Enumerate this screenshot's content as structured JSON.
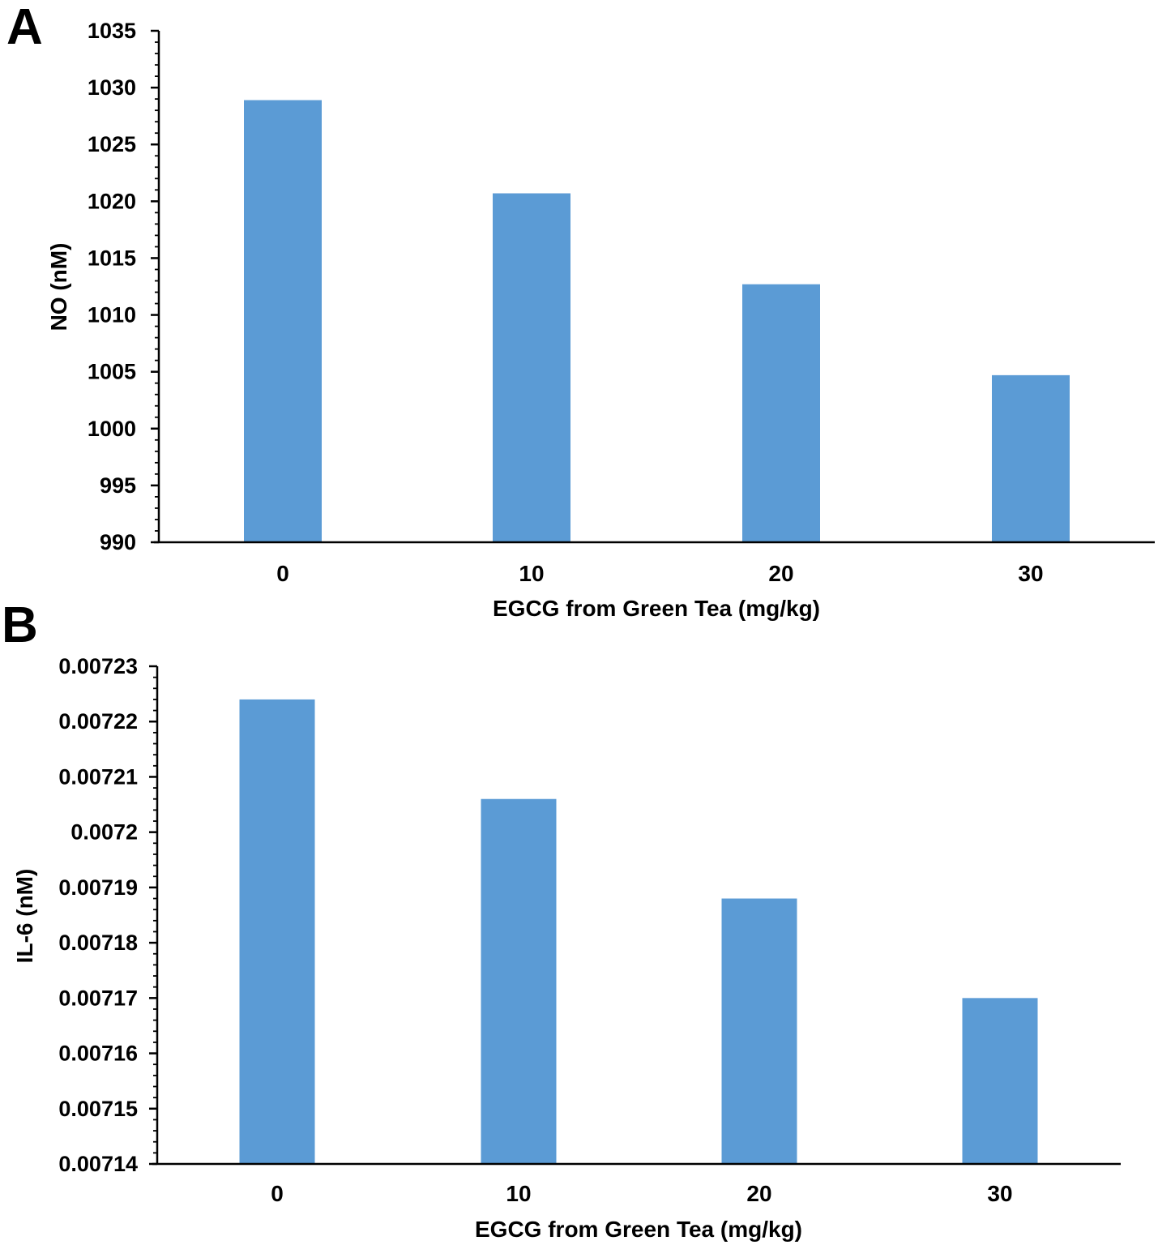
{
  "colors": {
    "bar": "#5b9bd5",
    "axis": "#000000"
  },
  "chart_data": [
    {
      "panel": "A",
      "type": "bar",
      "categories": [
        "0",
        "10",
        "20",
        "30"
      ],
      "values": [
        1028.9,
        1020.7,
        1012.7,
        1004.7
      ],
      "xlabel": "EGCG from Green Tea (mg/kg)",
      "ylabel": "NO (nM)",
      "ylim": [
        990,
        1035
      ],
      "yticks": [
        "990",
        "995",
        "1000",
        "1005",
        "1010",
        "1015",
        "1020",
        "1025",
        "1030",
        "1035"
      ],
      "grid": false
    },
    {
      "panel": "B",
      "type": "bar",
      "categories": [
        "0",
        "10",
        "20",
        "30"
      ],
      "values": [
        0.007224,
        0.007206,
        0.007188,
        0.00717
      ],
      "xlabel": "EGCG from Green Tea (mg/kg)",
      "ylabel": "IL-6 (nM)",
      "ylim": [
        0.00714,
        0.00723
      ],
      "yticks": [
        "0.00714",
        "0.00715",
        "0.00716",
        "0.00717",
        "0.00718",
        "0.00719",
        "0.0072",
        "0.00721",
        "0.00722",
        "0.00723"
      ],
      "grid": false
    }
  ]
}
